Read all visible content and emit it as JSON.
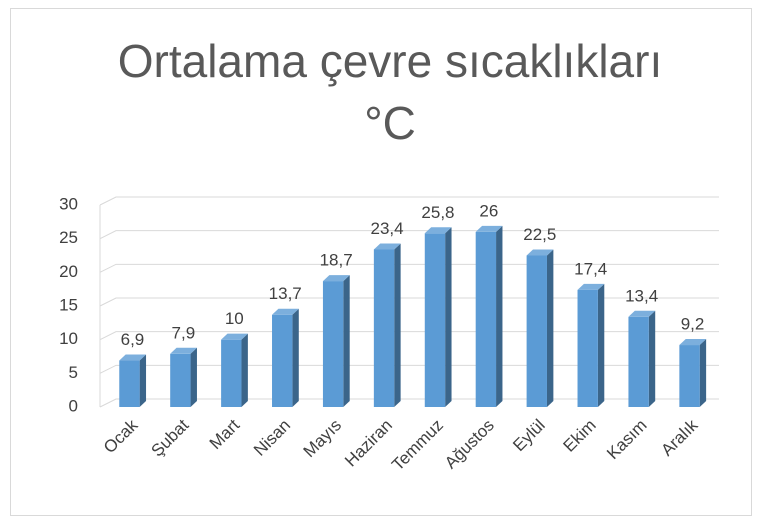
{
  "chart_data": {
    "type": "bar3d",
    "title": "Ortalama çevre sıcaklıkları °C",
    "categories": [
      "Ocak",
      "Şubat",
      "Mart",
      "Nisan",
      "Mayıs",
      "Haziran",
      "Temmuz",
      "Ağustos",
      "Eylül",
      "Ekim",
      "Kasım",
      "Aralık"
    ],
    "values": [
      6.9,
      7.9,
      10,
      13.7,
      18.7,
      23.4,
      25.8,
      26,
      22.5,
      17.4,
      13.4,
      9.2
    ],
    "value_labels": [
      "6,9",
      "7,9",
      "10",
      "13,7",
      "18,7",
      "23,4",
      "25,8",
      "26",
      "22,5",
      "17,4",
      "13,4",
      "9,2"
    ],
    "color": "#5b9bd5",
    "ylim": [
      0,
      30
    ],
    "yticks": [
      0,
      5,
      10,
      15,
      20,
      25,
      30
    ],
    "grid": true
  }
}
